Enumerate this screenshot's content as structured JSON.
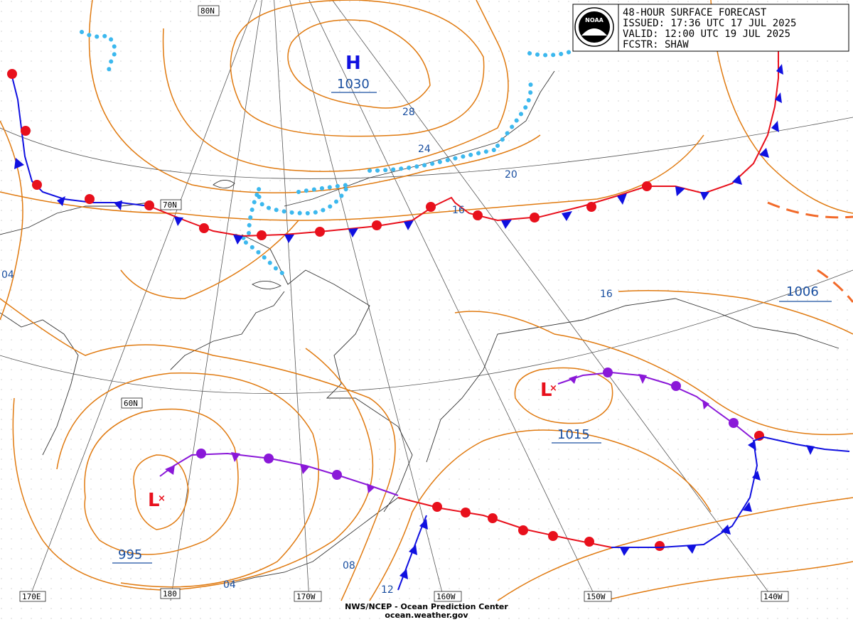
{
  "header": {
    "line1": "48-HOUR SURFACE FORECAST",
    "line2": "ISSUED: 17:36 UTC 17 JUL 2025",
    "line3": "VALID:  12:00 UTC 19 JUL 2025",
    "line4": "FCSTR: SHAW",
    "logo_text": "NOAA"
  },
  "footer": {
    "line1": "NWS/NCEP - Ocean Prediction Center",
    "line2": "ocean.weather.gov"
  },
  "pressure_centers": {
    "high": {
      "symbol": "H",
      "value": "1030"
    },
    "low_west": {
      "symbol": "L",
      "value": "995"
    },
    "low_east": {
      "symbol": "L",
      "value": "1015"
    },
    "far_east_value": "1006"
  },
  "isobar_labels": {
    "l28": "28",
    "l24": "24",
    "l20": "20",
    "l16a": "16",
    "l16b": "16",
    "l04a": "04",
    "l04b": "04",
    "l08": "08",
    "l12": "12"
  },
  "graticule_labels": {
    "lat80": "80N",
    "lat70": "70N",
    "lat60": "60N",
    "lon170e": "170E",
    "lon180": "180",
    "lon170w": "170W",
    "lon160w": "160W",
    "lon150w": "150W",
    "lon140w": "140W"
  },
  "colors": {
    "isobar": "#e07a10",
    "warm_front": "#e8101c",
    "cold_front": "#1010e0",
    "occluded_front": "#8a18d8",
    "ice_edge": "#3cb8ee",
    "label_blue": "#1a4fa0",
    "coast": "#333333",
    "grid": "#555555"
  }
}
